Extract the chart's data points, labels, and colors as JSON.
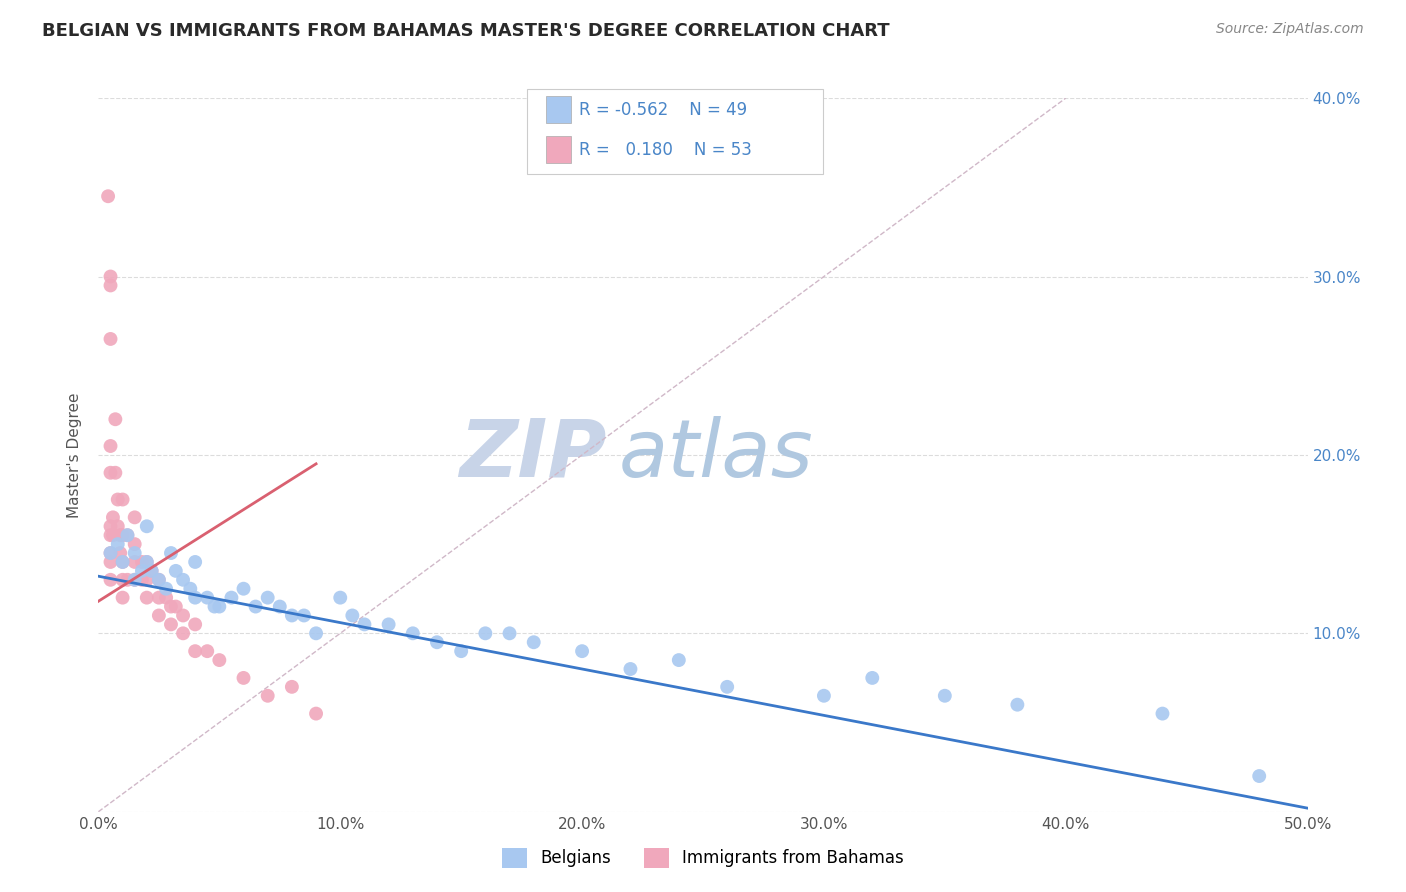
{
  "title": "BELGIAN VS IMMIGRANTS FROM BAHAMAS MASTER'S DEGREE CORRELATION CHART",
  "source": "Source: ZipAtlas.com",
  "xlabel": "",
  "ylabel": "Master's Degree",
  "xlim": [
    0.0,
    0.5
  ],
  "ylim": [
    0.0,
    0.4
  ],
  "xtick_labels": [
    "0.0%",
    "10.0%",
    "20.0%",
    "30.0%",
    "40.0%",
    "50.0%"
  ],
  "xtick_vals": [
    0.0,
    0.1,
    0.2,
    0.3,
    0.4,
    0.5
  ],
  "ytick_vals": [
    0.0,
    0.1,
    0.2,
    0.3,
    0.4
  ],
  "ytick_labels_right": [
    "",
    "10.0%",
    "20.0%",
    "30.0%",
    "40.0%"
  ],
  "color_blue": "#A8C8F0",
  "color_pink": "#F0A8BC",
  "color_blue_line": "#3A78C9",
  "color_pink_line": "#D96070",
  "color_diagonal": "#D0B8C8",
  "watermark_zip": "ZIP",
  "watermark_atlas": "atlas",
  "blue_scatter_x": [
    0.005,
    0.008,
    0.01,
    0.012,
    0.015,
    0.015,
    0.018,
    0.02,
    0.02,
    0.022,
    0.025,
    0.028,
    0.03,
    0.032,
    0.035,
    0.038,
    0.04,
    0.04,
    0.045,
    0.048,
    0.05,
    0.055,
    0.06,
    0.065,
    0.07,
    0.075,
    0.08,
    0.085,
    0.09,
    0.1,
    0.105,
    0.11,
    0.12,
    0.13,
    0.14,
    0.15,
    0.16,
    0.17,
    0.18,
    0.2,
    0.22,
    0.24,
    0.26,
    0.3,
    0.32,
    0.35,
    0.38,
    0.44,
    0.48
  ],
  "blue_scatter_y": [
    0.145,
    0.15,
    0.14,
    0.155,
    0.13,
    0.145,
    0.135,
    0.16,
    0.14,
    0.135,
    0.13,
    0.125,
    0.145,
    0.135,
    0.13,
    0.125,
    0.14,
    0.12,
    0.12,
    0.115,
    0.115,
    0.12,
    0.125,
    0.115,
    0.12,
    0.115,
    0.11,
    0.11,
    0.1,
    0.12,
    0.11,
    0.105,
    0.105,
    0.1,
    0.095,
    0.09,
    0.1,
    0.1,
    0.095,
    0.09,
    0.08,
    0.085,
    0.07,
    0.065,
    0.075,
    0.065,
    0.06,
    0.055,
    0.02
  ],
  "pink_scatter_x": [
    0.004,
    0.005,
    0.005,
    0.005,
    0.005,
    0.005,
    0.005,
    0.005,
    0.005,
    0.005,
    0.005,
    0.006,
    0.006,
    0.007,
    0.007,
    0.008,
    0.008,
    0.009,
    0.009,
    0.01,
    0.01,
    0.01,
    0.01,
    0.01,
    0.012,
    0.012,
    0.015,
    0.015,
    0.015,
    0.015,
    0.018,
    0.018,
    0.02,
    0.02,
    0.02,
    0.022,
    0.025,
    0.025,
    0.025,
    0.028,
    0.03,
    0.03,
    0.032,
    0.035,
    0.035,
    0.04,
    0.04,
    0.045,
    0.05,
    0.06,
    0.07,
    0.08,
    0.09
  ],
  "pink_scatter_y": [
    0.345,
    0.3,
    0.295,
    0.265,
    0.205,
    0.19,
    0.16,
    0.155,
    0.145,
    0.14,
    0.13,
    0.165,
    0.155,
    0.22,
    0.19,
    0.175,
    0.16,
    0.155,
    0.145,
    0.175,
    0.155,
    0.14,
    0.13,
    0.12,
    0.155,
    0.13,
    0.165,
    0.15,
    0.14,
    0.13,
    0.14,
    0.13,
    0.14,
    0.13,
    0.12,
    0.135,
    0.13,
    0.12,
    0.11,
    0.12,
    0.115,
    0.105,
    0.115,
    0.11,
    0.1,
    0.105,
    0.09,
    0.09,
    0.085,
    0.075,
    0.065,
    0.07,
    0.055
  ],
  "blue_trend_x": [
    0.0,
    0.5
  ],
  "blue_trend_y": [
    0.132,
    0.002
  ],
  "pink_trend_x": [
    0.0,
    0.09
  ],
  "pink_trend_y": [
    0.118,
    0.195
  ],
  "background_color": "#FFFFFF",
  "plot_bg_color": "#FFFFFF",
  "grid_color": "#DCDCDC",
  "title_color": "#2A2A2A",
  "axis_label_color": "#555555",
  "tick_color_right": "#4A86C8",
  "watermark_color_zip": "#C8D4E8",
  "watermark_color_atlas": "#B0C8E0",
  "title_fontsize": 13,
  "source_fontsize": 10,
  "legend_fontsize": 12,
  "scatter_size": 100
}
